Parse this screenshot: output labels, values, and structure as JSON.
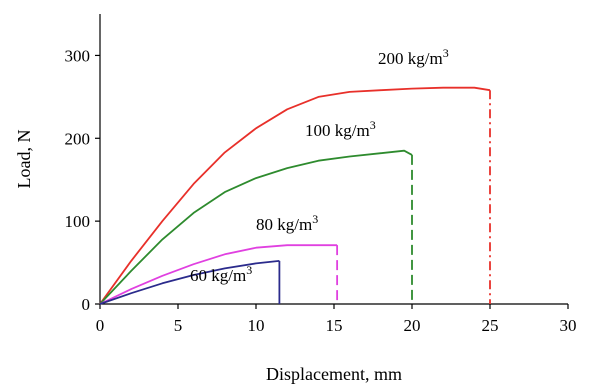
{
  "chart_data": {
    "type": "line",
    "xlabel": "Displacement, mm",
    "ylabel": "Load, N",
    "xlim": [
      0,
      30
    ],
    "ylim": [
      0,
      350
    ],
    "x_ticks": [
      0,
      5,
      10,
      15,
      20,
      25,
      30
    ],
    "y_ticks": [
      0,
      100,
      200,
      300
    ],
    "grid": false,
    "series": [
      {
        "name_base": "200 kg/m",
        "name_sup": "3",
        "color": "#e8302a",
        "line_style": "solid",
        "failure_style": "dash-dot",
        "points": [
          [
            0,
            0
          ],
          [
            2,
            52
          ],
          [
            4,
            100
          ],
          [
            6,
            145
          ],
          [
            8,
            183
          ],
          [
            10,
            212
          ],
          [
            12,
            235
          ],
          [
            14,
            250
          ],
          [
            16,
            256
          ],
          [
            18,
            258
          ],
          [
            20,
            260
          ],
          [
            22,
            261
          ],
          [
            24,
            261
          ],
          [
            25,
            258
          ]
        ],
        "failure_x": 25
      },
      {
        "name_base": "100 kg/m",
        "name_sup": "3",
        "color": "#2e8b2e",
        "line_style": "solid",
        "failure_style": "dashed",
        "points": [
          [
            0,
            0
          ],
          [
            2,
            40
          ],
          [
            4,
            78
          ],
          [
            6,
            110
          ],
          [
            8,
            135
          ],
          [
            10,
            152
          ],
          [
            12,
            164
          ],
          [
            14,
            173
          ],
          [
            16,
            178
          ],
          [
            18,
            182
          ],
          [
            19.5,
            185
          ],
          [
            20,
            180
          ]
        ],
        "failure_x": 20
      },
      {
        "name_base": "80 kg/m",
        "name_sup": "3",
        "color": "#e040e0",
        "line_style": "solid",
        "failure_style": "dashed",
        "points": [
          [
            0,
            0
          ],
          [
            2,
            18
          ],
          [
            4,
            34
          ],
          [
            6,
            48
          ],
          [
            8,
            60
          ],
          [
            10,
            68
          ],
          [
            12,
            71
          ],
          [
            14,
            71
          ],
          [
            15.2,
            71
          ]
        ],
        "failure_x": 15.2
      },
      {
        "name_base": "60 kg/m",
        "name_sup": "3",
        "color": "#2b2b8c",
        "line_style": "solid",
        "failure_style": "solid",
        "points": [
          [
            0,
            0
          ],
          [
            2,
            13
          ],
          [
            4,
            25
          ],
          [
            6,
            35
          ],
          [
            8,
            43
          ],
          [
            10,
            49
          ],
          [
            11.5,
            52
          ]
        ],
        "failure_x": 11.5
      }
    ]
  }
}
